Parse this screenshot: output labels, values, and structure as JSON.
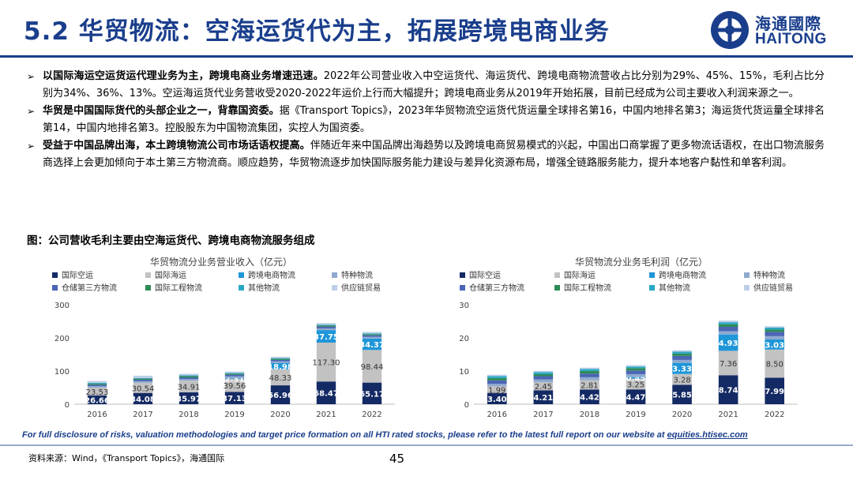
{
  "title": "5.2 华贸物流：空海运货代为主，拓展跨境电商业务",
  "logo": {
    "cn": "海通國際",
    "en": "HAITONG"
  },
  "bullets": [
    {
      "lead": "以国际海运空运货运代理业务为主，跨境电商业务增速迅速。",
      "body": "2022年公司营业收入中空运货代、海运货代、跨境电商物流营收占比分别为29%、45%、15%，毛利占比分别为34%、36%、13%。空运海运货代业务营收受2020-2022年运价上行而大幅提升；跨境电商业务从2019年开始拓展，目前已经成为公司主要收入利润来源之一。"
    },
    {
      "lead": "华贸是中国国际货代的头部企业之一，背靠国资委。",
      "body": "据《Transport Topics》，2023年华贸物流空运货代货运量全球排名第16，中国内地排名第3；海运货代货运量全球排名第14，中国内地排名第3。控股股东为中国物流集团，实控人为国资委。"
    },
    {
      "lead": "受益于中国品牌出海，本土跨境物流公司市场话语权提高。",
      "body": "伴随近年来中国品牌出海趋势以及跨境电商贸易模式的兴起，中国出口商掌握了更多物流话语权，在出口物流服务商选择上会更加倾向于本土第三方物流商。顺应趋势，华贸物流逐步加快国际服务能力建设与差异化资源布局，增强全链路服务能力，提升本地客户黏性和单客利润。"
    }
  ],
  "figure_title": "图：公司营收毛利主要由空海运货代、跨境电商物流服务组成",
  "chart_data": [
    {
      "type": "bar",
      "stacked": true,
      "title": "华贸物流分业务营业收入（亿元）",
      "categories": [
        "2016",
        "2017",
        "2018",
        "2019",
        "2020",
        "2021",
        "2022"
      ],
      "ylim": [
        0,
        300
      ],
      "yticks": [
        0,
        100,
        200,
        300
      ],
      "grid": false,
      "legend": "top",
      "series": [
        {
          "name": "国际空运",
          "color": "#142a64",
          "values": [
            26.66,
            34.08,
            35.97,
            37.13,
            56.96,
            68.47,
            65.17
          ],
          "labels": [
            "26.66",
            "34.08",
            "35.97",
            "37.13",
            "56.96",
            "68.47",
            "65.17"
          ]
        },
        {
          "name": "国际海运",
          "color": "#c2c2c2",
          "values": [
            23.53,
            30.54,
            34.91,
            39.56,
            48.33,
            117.3,
            98.44
          ],
          "labels": [
            "23.53",
            "30.54",
            "34.91",
            "39.56",
            "48.33",
            "117.30",
            "98.44"
          ]
        },
        {
          "name": "跨境电商物流",
          "color": "#1e96d8",
          "values": [
            0,
            0,
            0,
            2.31,
            18.98,
            37.75,
            34.37
          ],
          "labels": [
            "",
            "",
            "",
            "2.31",
            "18.98",
            "37.75",
            "34.37"
          ]
        },
        {
          "name": "特种物流",
          "color": "#8fa9cf",
          "values": [
            4.5,
            4.8,
            5.2,
            5.0,
            4.8,
            5.2,
            5.0
          ]
        },
        {
          "name": "仓储第三方物流",
          "color": "#4a66b4",
          "values": [
            4.2,
            4.5,
            4.8,
            5.0,
            4.5,
            5.5,
            5.0
          ]
        },
        {
          "name": "国际工程物流",
          "color": "#2e8b57",
          "values": [
            3.0,
            3.2,
            3.8,
            3.4,
            3.2,
            3.6,
            3.2
          ]
        },
        {
          "name": "其他物流",
          "color": "#2aa7c4",
          "values": [
            2.2,
            2.0,
            2.2,
            2.0,
            2.2,
            2.0,
            2.0
          ]
        },
        {
          "name": "供应链贸易",
          "color": "#bdd0e8",
          "values": [
            6.0,
            7.0,
            5.0,
            4.0,
            4.0,
            5.0,
            5.0
          ]
        }
      ]
    },
    {
      "type": "bar",
      "stacked": true,
      "title": "华贸物流分业务毛利润（亿元）",
      "categories": [
        "2016",
        "2017",
        "2018",
        "2019",
        "2020",
        "2021",
        "2022"
      ],
      "ylim": [
        0,
        30
      ],
      "yticks": [
        0,
        10,
        20,
        30
      ],
      "grid": false,
      "legend": "top",
      "series": [
        {
          "name": "国际空运",
          "color": "#142a64",
          "values": [
            3.4,
            4.21,
            4.42,
            4.47,
            5.85,
            8.74,
            7.99
          ],
          "labels": [
            "3.40",
            "4.21",
            "4.42",
            "4.47",
            "5.85",
            "8.74",
            "7.99"
          ]
        },
        {
          "name": "国际海运",
          "color": "#c2c2c2",
          "values": [
            1.99,
            2.45,
            2.81,
            3.25,
            3.28,
            7.36,
            8.5
          ],
          "labels": [
            "1.99",
            "2.45",
            "2.81",
            "3.25",
            "3.28",
            "7.36",
            "8.50"
          ]
        },
        {
          "name": "跨境电商物流",
          "color": "#1e96d8",
          "values": [
            0,
            0,
            0,
            0.45,
            3.33,
            4.93,
            3.03
          ],
          "labels": [
            "",
            "",
            "",
            "0.45",
            "3.33",
            "4.93",
            "3.03"
          ]
        },
        {
          "name": "特种物流",
          "color": "#8fa9cf",
          "values": [
            0.8,
            0.8,
            0.9,
            0.9,
            0.9,
            1.0,
            1.0
          ]
        },
        {
          "name": "仓储第三方物流",
          "color": "#4a66b4",
          "values": [
            1.0,
            1.0,
            1.1,
            1.1,
            1.2,
            1.3,
            1.3
          ]
        },
        {
          "name": "国际工程物流",
          "color": "#2e8b57",
          "values": [
            0.7,
            0.6,
            0.8,
            0.7,
            0.7,
            0.8,
            0.7
          ]
        },
        {
          "name": "其他物流",
          "color": "#2aa7c4",
          "values": [
            0.6,
            0.6,
            0.6,
            0.5,
            0.6,
            0.6,
            0.6
          ]
        },
        {
          "name": "供应链贸易",
          "color": "#bdd0e8",
          "values": [
            0.4,
            0.4,
            0.4,
            0.4,
            0.4,
            0.5,
            0.4
          ]
        }
      ]
    }
  ],
  "disclaimer": "For full disclosure of risks, valuation methodologies and target price formation on all HTI rated stocks, please refer to the latest full report on our website at ",
  "disclaimer_link": "equities.htisec.com",
  "source": "资料来源：Wind，《Transport Topics》，海通国际",
  "page_number": "45"
}
